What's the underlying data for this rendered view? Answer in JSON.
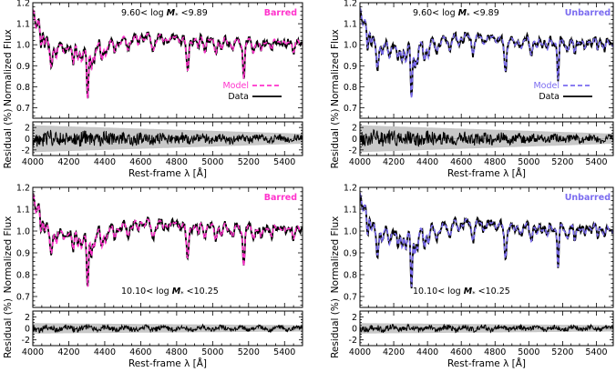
{
  "chart_data": [
    {
      "type": "line",
      "panel": "top-left",
      "category": "Barred",
      "category_color": "#ff33cc",
      "mass_label": {
        "lo": "9.60",
        "hi": "9.89",
        "sep": "< log ",
        "sym": "M",
        "sub": "*"
      },
      "legend": {
        "model": "Model",
        "data": "Data",
        "placement": "bottom-right"
      },
      "xlabel": "Rest-frame λ [Å]",
      "ylabel": "Normalized Flux",
      "resid_ylabel": "Residual (%)",
      "xlim": [
        4000,
        5500
      ],
      "ylim": [
        0.65,
        1.2
      ],
      "resid_ylim": [
        -3,
        3
      ],
      "series": [
        {
          "name": "Model",
          "color": "#ff33cc",
          "style": "dashed"
        },
        {
          "name": "Data",
          "color": "#000000",
          "style": "solid"
        }
      ]
    },
    {
      "type": "line",
      "panel": "top-right",
      "category": "Unbarred",
      "category_color": "#7b6cf0",
      "mass_label": {
        "lo": "9.60",
        "hi": "9.89",
        "sep": "< log ",
        "sym": "M",
        "sub": "*"
      },
      "legend": {
        "model": "Model",
        "data": "Data",
        "placement": "bottom-right"
      },
      "xlabel": "Rest-frame λ [Å]",
      "ylabel": "Normalized Flux",
      "resid_ylabel": "Residual (%)",
      "xlim": [
        4000,
        5500
      ],
      "ylim": [
        0.65,
        1.2
      ],
      "resid_ylim": [
        -3,
        3
      ],
      "series": [
        {
          "name": "Model",
          "color": "#7b6cf0",
          "style": "dashed"
        },
        {
          "name": "Data",
          "color": "#000000",
          "style": "solid"
        }
      ]
    },
    {
      "type": "line",
      "panel": "bottom-left",
      "category": "Barred",
      "category_color": "#ff33cc",
      "mass_label": {
        "lo": "10.10",
        "hi": "10.25",
        "sep": "< log ",
        "sym": "M",
        "sub": "*"
      },
      "xlabel": "Rest-frame λ [Å]",
      "ylabel": "Normalized Flux",
      "resid_ylabel": "Residual (%)",
      "xlim": [
        4000,
        5500
      ],
      "ylim": [
        0.65,
        1.2
      ],
      "resid_ylim": [
        -3,
        3
      ],
      "series": [
        {
          "name": "Model",
          "color": "#ff33cc",
          "style": "dashed"
        },
        {
          "name": "Data",
          "color": "#000000",
          "style": "solid"
        }
      ]
    },
    {
      "type": "line",
      "panel": "bottom-right",
      "category": "Unbarred",
      "category_color": "#7b6cf0",
      "mass_label": {
        "lo": "10.10",
        "hi": "10.25",
        "sep": "< log ",
        "sym": "M",
        "sub": "*"
      },
      "xlabel": "Rest-frame λ [Å]",
      "ylabel": "Normalized Flux",
      "resid_ylabel": "Residual (%)",
      "xlim": [
        4000,
        5500
      ],
      "ylim": [
        0.65,
        1.2
      ],
      "resid_ylim": [
        -3,
        3
      ],
      "series": [
        {
          "name": "Model",
          "color": "#7b6cf0",
          "style": "dashed"
        },
        {
          "name": "Data",
          "color": "#000000",
          "style": "solid"
        }
      ]
    }
  ],
  "axes": {
    "x_ticks": [
      4000,
      4200,
      4400,
      4600,
      4800,
      5000,
      5200,
      5400
    ],
    "x_tick_labels": [
      "4000",
      "4200",
      "4400",
      "4600",
      "4800",
      "5000",
      "5200",
      "5400"
    ],
    "x_minor_step": 50,
    "y_ticks": [
      0.7,
      0.8,
      0.9,
      1.0,
      1.1,
      1.2
    ],
    "y_tick_labels": [
      "0.7",
      "0.8",
      "0.9",
      "1.0",
      "1.1",
      "1.2"
    ],
    "y_minor_step": 0.02,
    "resid_ticks": [
      -2,
      0,
      2
    ],
    "resid_tick_labels": [
      "-2",
      "0",
      "2"
    ],
    "resid_minor_step": 0.5
  },
  "spectrum": {
    "continuum": [
      [
        4000,
        1.17
      ],
      [
        4080,
        1.03
      ],
      [
        4150,
        1.0
      ],
      [
        4300,
        0.98
      ],
      [
        4450,
        1.01
      ],
      [
        4600,
        1.04
      ],
      [
        4800,
        1.03
      ],
      [
        5000,
        1.02
      ],
      [
        5200,
        1.01
      ],
      [
        5400,
        1.02
      ],
      [
        5500,
        1.0
      ]
    ],
    "lines": [
      {
        "center": 4018,
        "depth": 0.06,
        "width": 6
      },
      {
        "center": 4045,
        "depth": 0.09,
        "width": 5
      },
      {
        "center": 4067,
        "depth": 0.05,
        "width": 5
      },
      {
        "center": 4102,
        "depth": 0.14,
        "width": 8
      },
      {
        "center": 4132,
        "depth": 0.06,
        "width": 5
      },
      {
        "center": 4172,
        "depth": 0.05,
        "width": 6
      },
      {
        "center": 4226,
        "depth": 0.08,
        "width": 6
      },
      {
        "center": 4250,
        "depth": 0.05,
        "width": 5
      },
      {
        "center": 4271,
        "depth": 0.06,
        "width": 5
      },
      {
        "center": 4305,
        "depth": 0.26,
        "width": 5
      },
      {
        "center": 4326,
        "depth": 0.09,
        "width": 5
      },
      {
        "center": 4341,
        "depth": 0.06,
        "width": 5
      },
      {
        "center": 4383,
        "depth": 0.07,
        "width": 6
      },
      {
        "center": 4405,
        "depth": 0.05,
        "width": 5
      },
      {
        "center": 4455,
        "depth": 0.04,
        "width": 7
      },
      {
        "center": 4530,
        "depth": 0.05,
        "width": 7
      },
      {
        "center": 4585,
        "depth": 0.04,
        "width": 6
      },
      {
        "center": 4668,
        "depth": 0.07,
        "width": 8
      },
      {
        "center": 4730,
        "depth": 0.03,
        "width": 6
      },
      {
        "center": 4861,
        "depth": 0.16,
        "width": 7
      },
      {
        "center": 4920,
        "depth": 0.04,
        "width": 6
      },
      {
        "center": 4957,
        "depth": 0.04,
        "width": 6
      },
      {
        "center": 5015,
        "depth": 0.05,
        "width": 7
      },
      {
        "center": 5050,
        "depth": 0.04,
        "width": 6
      },
      {
        "center": 5110,
        "depth": 0.04,
        "width": 6
      },
      {
        "center": 5173,
        "depth": 0.17,
        "width": 5
      },
      {
        "center": 5228,
        "depth": 0.04,
        "width": 6
      },
      {
        "center": 5270,
        "depth": 0.06,
        "width": 6
      },
      {
        "center": 5330,
        "depth": 0.05,
        "width": 6
      },
      {
        "center": 5406,
        "depth": 0.04,
        "width": 6
      },
      {
        "center": 5450,
        "depth": 0.03,
        "width": 6
      }
    ]
  }
}
